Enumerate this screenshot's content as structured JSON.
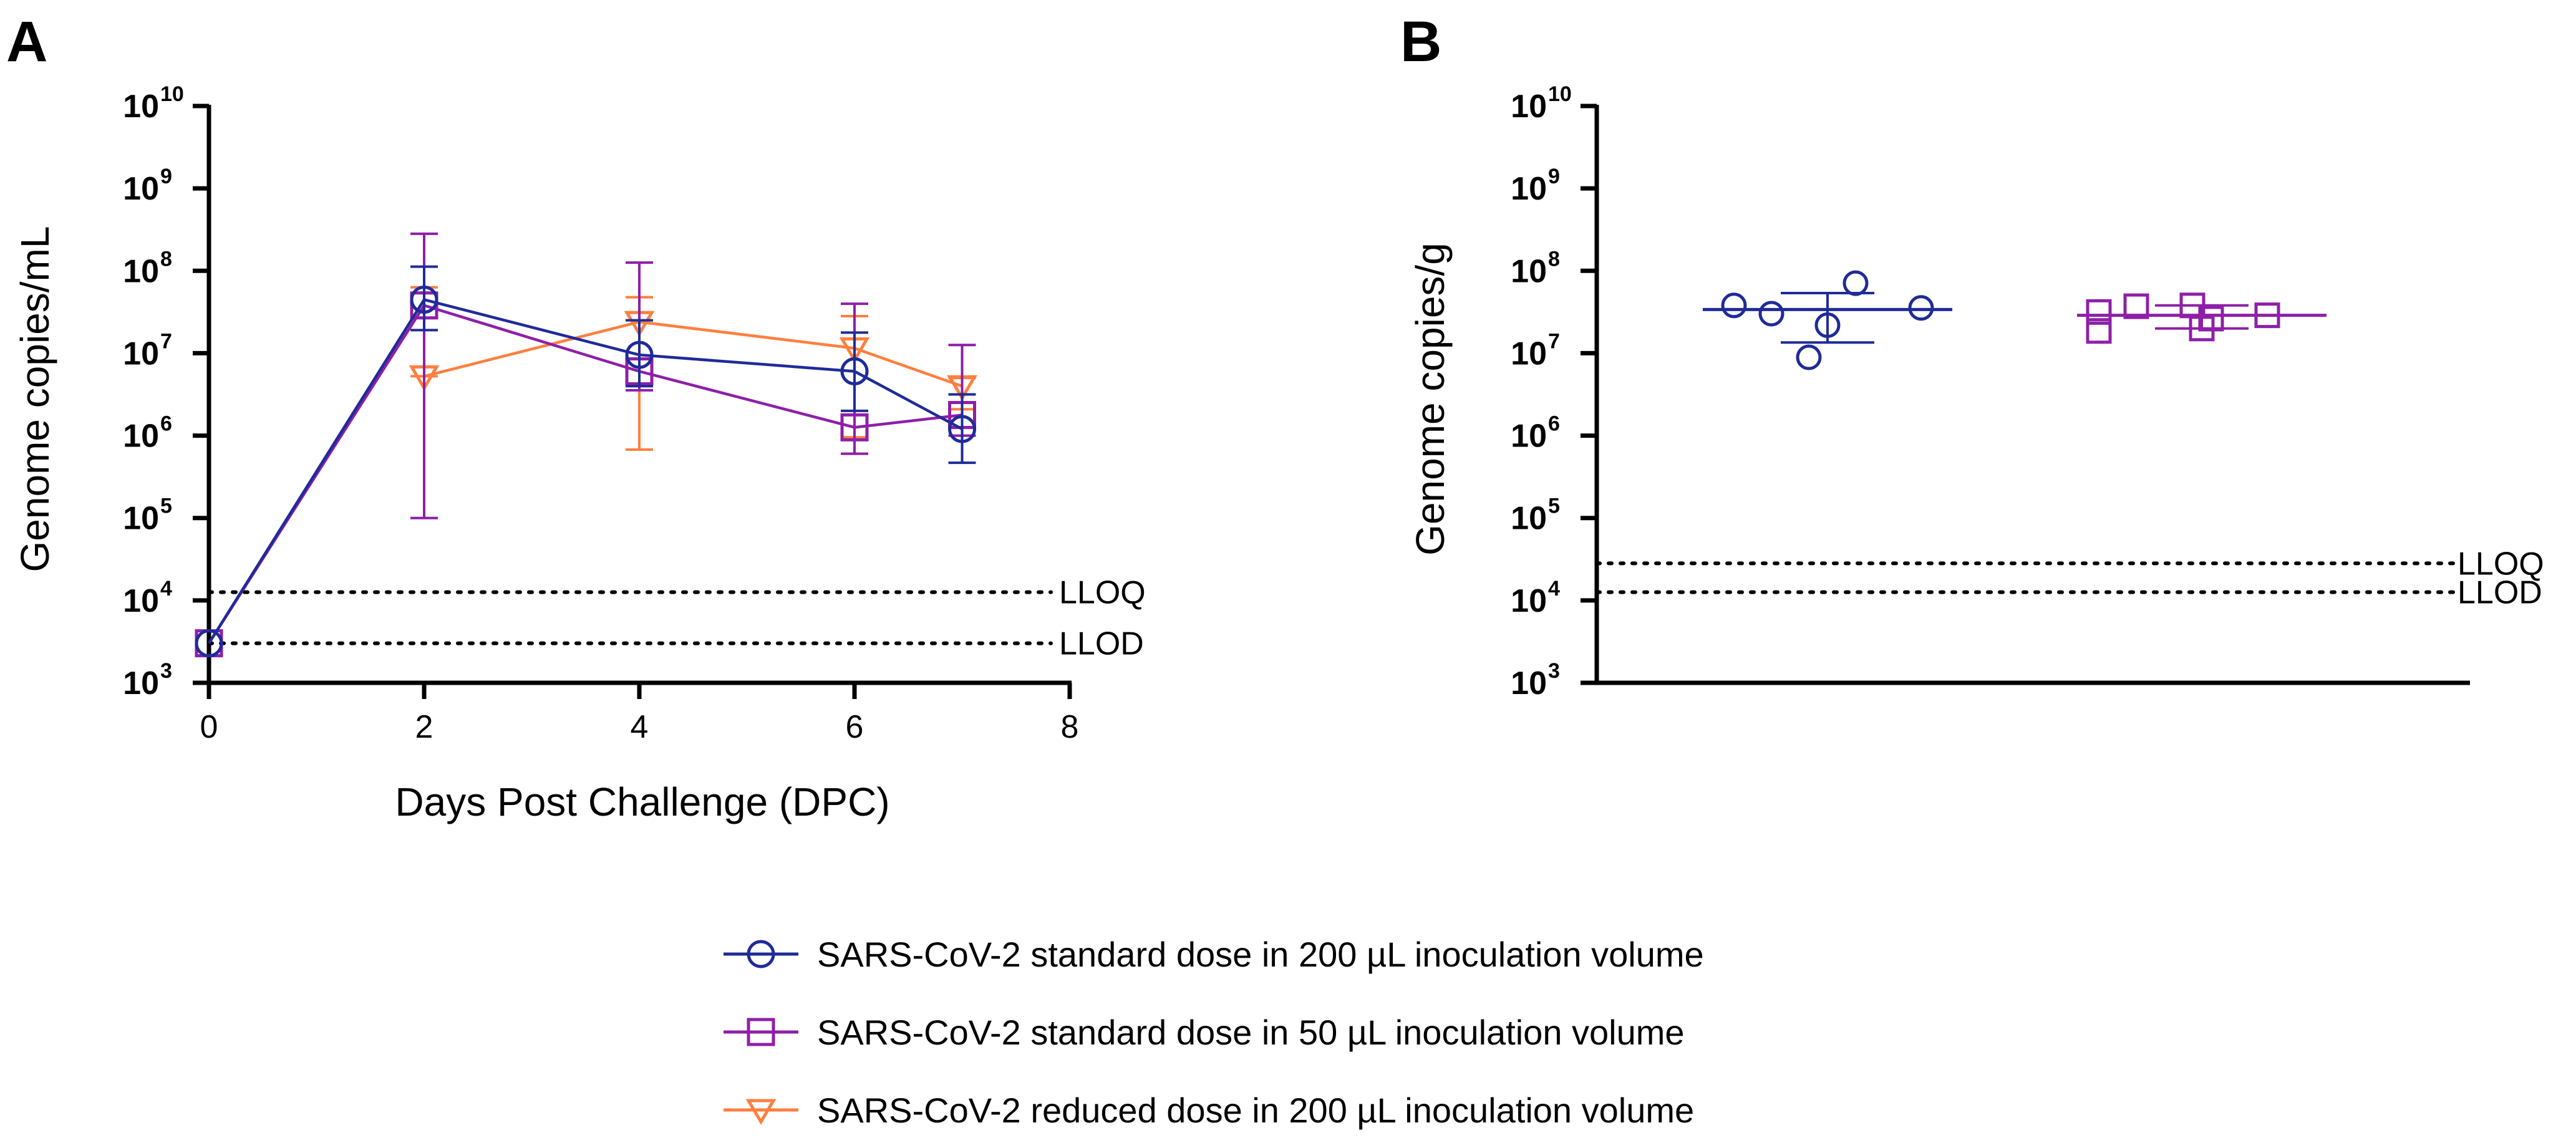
{
  "chart_data": [
    {
      "panel": "A",
      "type": "line",
      "xlabel": "Days Post Challenge (DPC)",
      "ylabel": "Genome copies/mL",
      "xlim": [
        0,
        8
      ],
      "x_ticks": [
        "0",
        "2",
        "4",
        "6",
        "8"
      ],
      "y_scale": "log10",
      "ylim_exponent": [
        3,
        10
      ],
      "y_tick_base": "10",
      "y_tick_exponents": [
        "3",
        "4",
        "5",
        "6",
        "7",
        "8",
        "9",
        "10"
      ],
      "reference_lines": [
        {
          "label": "LLOQ",
          "log10_value": 4.1
        },
        {
          "label": "LLOD",
          "log10_value": 3.48
        }
      ],
      "series": [
        {
          "name": "SARS-CoV-2 standard dose in 200 µL inoculation volume",
          "color": "#1f2b99",
          "marker": "circle",
          "points": [
            {
              "x": 0,
              "log10_y": 3.48,
              "log10_lo": 3.48,
              "log10_hi": 3.48
            },
            {
              "x": 2,
              "log10_y": 7.65,
              "log10_lo": 7.28,
              "log10_hi": 8.05
            },
            {
              "x": 4,
              "log10_y": 6.98,
              "log10_lo": 6.6,
              "log10_hi": 7.4
            },
            {
              "x": 6,
              "log10_y": 6.78,
              "log10_lo": 6.3,
              "log10_hi": 7.25
            },
            {
              "x": 7,
              "log10_y": 6.08,
              "log10_lo": 5.67,
              "log10_hi": 6.5
            }
          ]
        },
        {
          "name": "SARS-CoV-2 standard dose in 50 µL inoculation volume",
          "color": "#8e1fa8",
          "marker": "square",
          "points": [
            {
              "x": 0,
              "log10_y": 3.48,
              "log10_lo": 3.48,
              "log10_hi": 3.48
            },
            {
              "x": 2,
              "log10_y": 7.58,
              "log10_lo": 5.0,
              "log10_hi": 8.45
            },
            {
              "x": 4,
              "log10_y": 6.78,
              "log10_lo": 6.55,
              "log10_hi": 8.1
            },
            {
              "x": 6,
              "log10_y": 6.1,
              "log10_lo": 5.78,
              "log10_hi": 7.6
            },
            {
              "x": 7,
              "log10_y": 6.25,
              "log10_lo": 6.0,
              "log10_hi": 7.1
            }
          ]
        },
        {
          "name": "SARS-CoV-2 reduced dose in 200 µL inoculation volume",
          "color": "#ff7f3f",
          "marker": "triangle-down",
          "points": [
            {
              "x": 2,
              "log10_y": 6.72,
              "log10_lo": 6.72,
              "log10_hi": 7.8
            },
            {
              "x": 4,
              "log10_y": 7.38,
              "log10_lo": 5.83,
              "log10_hi": 7.68
            },
            {
              "x": 6,
              "log10_y": 7.06,
              "log10_lo": 5.98,
              "log10_hi": 7.45
            },
            {
              "x": 7,
              "log10_y": 6.6,
              "log10_lo": 6.32,
              "log10_hi": 6.7
            }
          ]
        }
      ]
    },
    {
      "panel": "B",
      "type": "scatter",
      "ylabel": "Genome copies/g",
      "y_scale": "log10",
      "ylim_exponent": [
        3,
        10
      ],
      "y_tick_base": "10",
      "y_tick_exponents": [
        "3",
        "4",
        "5",
        "6",
        "7",
        "8",
        "9",
        "10"
      ],
      "reference_lines": [
        {
          "label": "LLOQ",
          "log10_value": 4.45
        },
        {
          "label": "LLOD",
          "log10_value": 4.1
        }
      ],
      "groups": [
        {
          "name": "SARS-CoV-2 standard dose in 200 µL inoculation volume",
          "color": "#1f2b99",
          "marker": "circle",
          "mean_log10": 7.53,
          "sd_lo_log10": 7.13,
          "sd_hi_log10": 7.73,
          "points": [
            {
              "jitter": -0.5,
              "log10_y": 7.58
            },
            {
              "jitter": -0.3,
              "log10_y": 7.48
            },
            {
              "jitter": -0.1,
              "log10_y": 6.95
            },
            {
              "jitter": 0.0,
              "log10_y": 7.34
            },
            {
              "jitter": 0.15,
              "log10_y": 7.85
            },
            {
              "jitter": 0.5,
              "log10_y": 7.55
            }
          ]
        },
        {
          "name": "SARS-CoV-2 standard dose in 50 µL inoculation volume",
          "color": "#8e1fa8",
          "marker": "square",
          "mean_log10": 7.46,
          "sd_lo_log10": 7.3,
          "sd_hi_log10": 7.58,
          "points": [
            {
              "jitter": -0.55,
              "log10_y": 7.5
            },
            {
              "jitter": -0.55,
              "log10_y": 7.27
            },
            {
              "jitter": -0.35,
              "log10_y": 7.57
            },
            {
              "jitter": -0.05,
              "log10_y": 7.58
            },
            {
              "jitter": 0.0,
              "log10_y": 7.3
            },
            {
              "jitter": 0.05,
              "log10_y": 7.42
            },
            {
              "jitter": 0.35,
              "log10_y": 7.46
            }
          ]
        }
      ]
    }
  ],
  "legend": [
    {
      "label": "SARS-CoV-2 standard dose in 200 µL inoculation volume",
      "color": "#1f2b99",
      "marker": "circle"
    },
    {
      "label": "SARS-CoV-2 standard dose in 50 µL inoculation volume",
      "color": "#8e1fa8",
      "marker": "square"
    },
    {
      "label": "SARS-CoV-2 reduced dose in 200 µL inoculation volume",
      "color": "#ff7f3f",
      "marker": "triangle-down"
    }
  ]
}
